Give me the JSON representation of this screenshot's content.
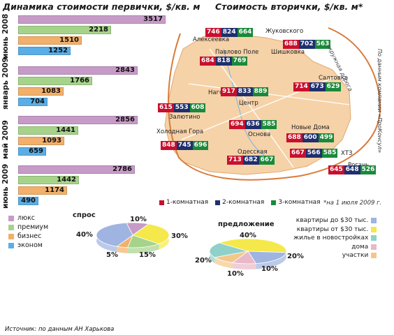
{
  "titles": {
    "left": "Динамика стоимости первички, $/кв. м",
    "right": "Стоимость вторички, $/кв. м*"
  },
  "colors": {
    "lux": "#c79bc8",
    "premium": "#a6d38a",
    "business": "#f2b06a",
    "economy": "#5aaee6",
    "room1": "#c8102e",
    "room2": "#1f2f6e",
    "room3": "#1a8a3a",
    "map_fill": "#f6d2a8",
    "road": "#d97a3a"
  },
  "chart_data": [
    {
      "type": "bar",
      "orientation": "horizontal",
      "title": "Динамика стоимости первички, $/кв. м",
      "categories": [
        "июнь 2008",
        "январь 2009",
        "май 2009",
        "июнь 2009"
      ],
      "series": [
        {
          "name": "люкс",
          "values": [
            3517,
            2843,
            2856,
            2786
          ]
        },
        {
          "name": "премиум",
          "values": [
            2218,
            1766,
            1441,
            1442
          ]
        },
        {
          "name": "бизнес",
          "values": [
            1510,
            1083,
            1093,
            1174
          ]
        },
        {
          "name": "эконом",
          "values": [
            1252,
            704,
            659,
            490
          ]
        }
      ]
    },
    {
      "type": "table",
      "title": "Стоимость вторички, $/кв. м*",
      "columns": [
        "1-комнатная",
        "2-комнатная",
        "3-комнатная"
      ],
      "rows": [
        {
          "district": "Алексеевка",
          "values": [
            746,
            824,
            664
          ]
        },
        {
          "district": "Жуковского",
          "values": [
            688,
            702,
            563
          ]
        },
        {
          "district": "Павлово Поле",
          "values": [
            684,
            818,
            769
          ]
        },
        {
          "district": "Салтовка",
          "values": [
            714,
            673,
            629
          ]
        },
        {
          "district": "Нагорный",
          "values": [
            917,
            833,
            889
          ]
        },
        {
          "district": "Залютино",
          "values": [
            615,
            553,
            608
          ]
        },
        {
          "district": "Основа",
          "values": [
            694,
            636,
            585
          ]
        },
        {
          "district": "Новые Дома",
          "values": [
            688,
            600,
            499
          ]
        },
        {
          "district": "Холодная Гора",
          "values": [
            848,
            745,
            696
          ]
        },
        {
          "district": "Одесская",
          "values": [
            713,
            682,
            667
          ]
        },
        {
          "district": "ХТЗ",
          "values": [
            667,
            566,
            585
          ]
        },
        {
          "district": "Рогань",
          "values": [
            645,
            648,
            526
          ]
        }
      ]
    },
    {
      "type": "pie",
      "title": "спрос",
      "slices": [
        {
          "name": "люкс",
          "value": 10
        },
        {
          "name": "премиум",
          "value": 30
        },
        {
          "name": "бизнес",
          "value": 15
        },
        {
          "name": "эконом",
          "value": 5
        },
        {
          "name": "",
          "value": 40
        }
      ]
    },
    {
      "type": "pie",
      "title": "предложение",
      "slices": [
        {
          "name": "квартиры до $30 тыс.",
          "value": 20
        },
        {
          "name": "квартиры от $30 тыс.",
          "value": 40
        },
        {
          "name": "жилье в новостройках",
          "value": 20
        },
        {
          "name": "дома",
          "value": 10
        },
        {
          "name": "участки",
          "value": 10
        }
      ]
    }
  ],
  "map": {
    "district_labels": {
      "alekseevka": "Алексеевка",
      "zhukovskogo": "Жуковского",
      "pavlovo": "Павлово Поле",
      "shishkovka": "Шишковка",
      "saltovka": "Салтовка",
      "nagorny": "Нагорный",
      "center": "Центр",
      "zalyutino": "Залютино",
      "holodnaya": "Холодная Гора",
      "osnova": "Основа",
      "novye": "Новые Дома",
      "odesskaya": "Одесская",
      "htz": "ХТЗ",
      "rogan": "Рогань"
    },
    "ring_road": "окружная дорога",
    "side_note": "По данным компании «ПроКонсул»"
  },
  "room_legend": {
    "r1": "1-комнатная",
    "r2": "2-комнатная",
    "r3": "3-комнатная"
  },
  "date_note": "*на 1 июля 2009 г.",
  "segment_legend": {
    "lux": "люкс",
    "premium": "премиум",
    "business": "бизнес",
    "economy": "эконом"
  },
  "pie_labels": {
    "demand_title": "спрос",
    "supply_title": "предложение",
    "d40": "40%",
    "d10": "10%",
    "d30": "30%",
    "d5": "5%",
    "d15": "15%",
    "s40": "40%",
    "s20a": "20%",
    "s20b": "20%",
    "s10a": "10%",
    "s10b": "10%"
  },
  "supply_legend": {
    "a": "квартиры до $30 тыс.",
    "b": "квартиры от $30 тыс.",
    "c": "жилье в новостройках",
    "d": "дома",
    "e": "участки"
  },
  "source": "Источник: по данным АН Харькова"
}
